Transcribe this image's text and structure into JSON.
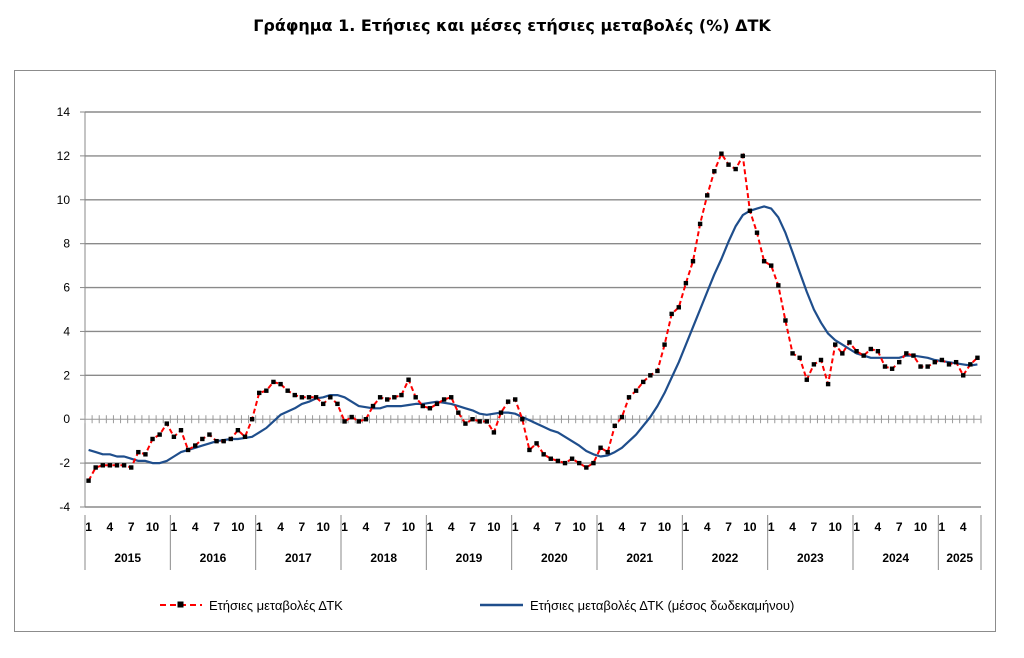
{
  "chart_data": {
    "type": "line",
    "title": "Γράφημα 1. Ετήσιες και μέσες ετήσιες μεταβολές (%) ΔΤΚ",
    "ylim": [
      -4,
      14
    ],
    "yticks": [
      "-4",
      "-2",
      "0",
      "2",
      "4",
      "6",
      "8",
      "10",
      "12",
      "14"
    ],
    "grid": true,
    "legend_position": "bottom",
    "month_labels": [
      "1",
      "4",
      "7",
      "10"
    ],
    "month_labels_2025": [
      "1",
      "4"
    ],
    "years": [
      "2015",
      "2016",
      "2017",
      "2018",
      "2019",
      "2020",
      "2021",
      "2022",
      "2023",
      "2024",
      "2025"
    ],
    "x_start": "2015-01",
    "x_end": "2025-06",
    "series": [
      {
        "name": "Ετήσιες μεταβολές ΔΤΚ",
        "color": "#ff0000",
        "style": "dashed-with-square-markers",
        "values": [
          -2.8,
          -2.2,
          -2.1,
          -2.1,
          -2.1,
          -2.1,
          -2.2,
          -1.5,
          -1.6,
          -0.9,
          -0.7,
          -0.2,
          -0.8,
          -0.5,
          -1.4,
          -1.2,
          -0.9,
          -0.7,
          -1.0,
          -1.0,
          -0.9,
          -0.5,
          -0.8,
          0.0,
          1.2,
          1.3,
          1.7,
          1.6,
          1.3,
          1.1,
          1.0,
          1.0,
          1.0,
          0.7,
          1.0,
          0.7,
          -0.1,
          0.1,
          -0.1,
          0.0,
          0.6,
          1.0,
          0.9,
          1.0,
          1.1,
          1.8,
          1.0,
          0.6,
          0.5,
          0.7,
          0.9,
          1.0,
          0.3,
          -0.2,
          0.0,
          -0.1,
          -0.1,
          -0.6,
          0.3,
          0.8,
          0.9,
          0.0,
          -1.4,
          -1.1,
          -1.6,
          -1.8,
          -1.9,
          -2.0,
          -1.8,
          -2.0,
          -2.2,
          -2.0,
          -1.3,
          -1.5,
          -0.3,
          0.1,
          1.0,
          1.3,
          1.7,
          2.0,
          2.2,
          3.4,
          4.8,
          5.1,
          6.2,
          7.2,
          8.9,
          10.2,
          11.3,
          12.1,
          11.6,
          11.4,
          12.0,
          9.5,
          8.5,
          7.2,
          7.0,
          6.1,
          4.5,
          3.0,
          2.8,
          1.8,
          2.5,
          2.7,
          1.6,
          3.4,
          3.0,
          3.5,
          3.1,
          2.9,
          3.2,
          3.1,
          2.4,
          2.3,
          2.6,
          3.0,
          2.9,
          2.4,
          2.4,
          2.6,
          2.7,
          2.5,
          2.6,
          2.0,
          2.5,
          2.8
        ]
      },
      {
        "name": "Ετήσιες μεταβολές ΔΤΚ (μέσος δωδεκαμήνου)",
        "color": "#1f4e8c",
        "style": "solid",
        "values": [
          -1.4,
          -1.5,
          -1.6,
          -1.6,
          -1.7,
          -1.7,
          -1.8,
          -1.9,
          -1.9,
          -2.0,
          -2.0,
          -1.9,
          -1.7,
          -1.5,
          -1.4,
          -1.3,
          -1.2,
          -1.1,
          -1.0,
          -0.95,
          -0.9,
          -0.9,
          -0.85,
          -0.8,
          -0.6,
          -0.4,
          -0.1,
          0.2,
          0.35,
          0.5,
          0.7,
          0.8,
          0.95,
          1.0,
          1.1,
          1.1,
          1.0,
          0.8,
          0.6,
          0.55,
          0.5,
          0.5,
          0.6,
          0.6,
          0.6,
          0.65,
          0.7,
          0.7,
          0.75,
          0.8,
          0.75,
          0.7,
          0.6,
          0.5,
          0.4,
          0.25,
          0.2,
          0.25,
          0.3,
          0.3,
          0.25,
          0.1,
          -0.05,
          -0.2,
          -0.35,
          -0.5,
          -0.6,
          -0.8,
          -1.0,
          -1.2,
          -1.45,
          -1.6,
          -1.7,
          -1.65,
          -1.5,
          -1.3,
          -1.0,
          -0.7,
          -0.3,
          0.1,
          0.6,
          1.2,
          1.9,
          2.6,
          3.4,
          4.2,
          5.0,
          5.8,
          6.6,
          7.3,
          8.1,
          8.8,
          9.3,
          9.5,
          9.6,
          9.7,
          9.6,
          9.2,
          8.5,
          7.6,
          6.7,
          5.8,
          5.0,
          4.4,
          3.9,
          3.6,
          3.4,
          3.2,
          3.0,
          2.9,
          2.8,
          2.8,
          2.8,
          2.8,
          2.8,
          2.9,
          2.9,
          2.85,
          2.8,
          2.7,
          2.65,
          2.6,
          2.55,
          2.5,
          2.45,
          2.5
        ]
      }
    ]
  }
}
